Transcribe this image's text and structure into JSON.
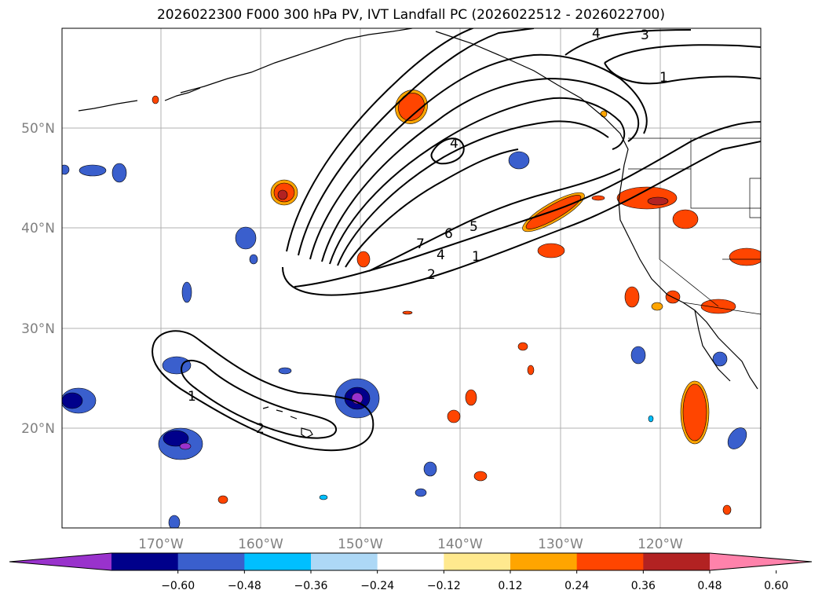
{
  "title": "2026022300 F000 300 hPa PV, IVT Landfall PC (2026022512 - 2026022700)",
  "map": {
    "lat_ticks": [
      "50°N",
      "40°N",
      "30°N",
      "20°N"
    ],
    "lon_ticks": [
      "170°W",
      "160°W",
      "150°W",
      "140°W",
      "130°W",
      "120°W"
    ],
    "contour_labels": [
      "4",
      "3",
      "1",
      "4",
      "7",
      "6",
      "5",
      "4",
      "2",
      "1",
      "1",
      "2"
    ]
  },
  "colorbar": {
    "ticks": [
      "−0.60",
      "−0.48",
      "−0.36",
      "−0.24",
      "−0.12",
      "0.12",
      "0.24",
      "0.36",
      "0.48",
      "0.60"
    ],
    "colors": [
      "#9932cc",
      "#00008b",
      "#3a5fcd",
      "#00bfff",
      "#add8f6",
      "#ffffff",
      "#ffe98e",
      "#ffa500",
      "#ff4500",
      "#b22222",
      "#ff82ab"
    ]
  },
  "colors": {
    "negative_strong": "#00008b",
    "negative_mid": "#3a5fcd",
    "negative_light": "#00bfff",
    "negative_extreme": "#9932cc",
    "positive_light": "#ffe98e",
    "positive_mid": "#ffa500",
    "positive_strong": "#ff4500",
    "positive_dark": "#b22222"
  }
}
